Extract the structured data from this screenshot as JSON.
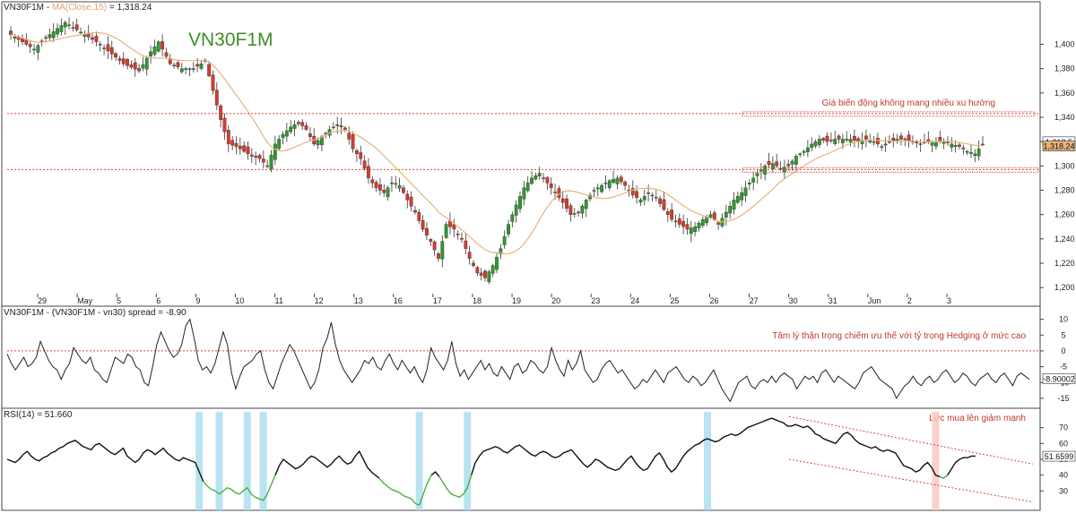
{
  "chart_data": [
    {
      "type": "candlestick",
      "pane": "price",
      "title": "VN30F1M - MA(Close,15) = 1,318.24",
      "title_parts": {
        "symbol": "VN30F1M - ",
        "ma_label": "MA(Close,15)",
        "ma_value": " = 1,318.24"
      },
      "watermark": "VN30F1M",
      "ylim": [
        1195,
        1432
      ],
      "yticks": [
        1200,
        1220,
        1240,
        1260,
        1280,
        1300,
        1320,
        1340,
        1360,
        1380,
        1400
      ],
      "ytick_labels": [
        "1,200",
        "1,220",
        "1,240",
        "1,260",
        "1,280",
        "1,300",
        "1,320",
        "1,340",
        "1,360",
        "1,380",
        "1,400"
      ],
      "x_labels": [
        "29",
        "May",
        "5",
        "6",
        "9",
        "10",
        "11",
        "12",
        "13",
        "16",
        "17",
        "18",
        "19",
        "20",
        "23",
        "24",
        "25",
        "26",
        "27",
        "30",
        "31",
        "Jun",
        "2",
        "3"
      ],
      "close_anchors": [
        [
          0,
          1408
        ],
        [
          6,
          1396
        ],
        [
          10,
          1408
        ],
        [
          14,
          1418
        ],
        [
          17,
          1412
        ],
        [
          22,
          1402
        ],
        [
          26,
          1392
        ],
        [
          29,
          1384
        ],
        [
          33,
          1378
        ],
        [
          36,
          1394
        ],
        [
          38,
          1402
        ],
        [
          41,
          1384
        ],
        [
          44,
          1380
        ],
        [
          47,
          1380
        ],
        [
          50,
          1386
        ],
        [
          52,
          1362
        ],
        [
          54,
          1338
        ],
        [
          56,
          1318
        ],
        [
          58,
          1316
        ],
        [
          60,
          1312
        ],
        [
          62,
          1308
        ],
        [
          64,
          1306
        ],
        [
          66,
          1300
        ],
        [
          68,
          1318
        ],
        [
          70,
          1326
        ],
        [
          72,
          1332
        ],
        [
          74,
          1336
        ],
        [
          76,
          1330
        ],
        [
          78,
          1318
        ],
        [
          80,
          1324
        ],
        [
          82,
          1330
        ],
        [
          84,
          1334
        ],
        [
          86,
          1330
        ],
        [
          88,
          1314
        ],
        [
          90,
          1306
        ],
        [
          92,
          1290
        ],
        [
          94,
          1282
        ],
        [
          96,
          1278
        ],
        [
          98,
          1286
        ],
        [
          100,
          1284
        ],
        [
          102,
          1272
        ],
        [
          104,
          1262
        ],
        [
          106,
          1248
        ],
        [
          108,
          1238
        ],
        [
          110,
          1224
        ],
        [
          112,
          1252
        ],
        [
          114,
          1248
        ],
        [
          116,
          1240
        ],
        [
          118,
          1224
        ],
        [
          120,
          1212
        ],
        [
          122,
          1208
        ],
        [
          124,
          1218
        ],
        [
          126,
          1232
        ],
        [
          128,
          1252
        ],
        [
          130,
          1268
        ],
        [
          132,
          1282
        ],
        [
          134,
          1290
        ],
        [
          136,
          1294
        ],
        [
          138,
          1286
        ],
        [
          140,
          1278
        ],
        [
          142,
          1270
        ],
        [
          144,
          1260
        ],
        [
          146,
          1262
        ],
        [
          148,
          1272
        ],
        [
          150,
          1280
        ],
        [
          152,
          1284
        ],
        [
          154,
          1288
        ],
        [
          156,
          1290
        ],
        [
          158,
          1284
        ],
        [
          160,
          1276
        ],
        [
          162,
          1272
        ],
        [
          164,
          1278
        ],
        [
          166,
          1274
        ],
        [
          168,
          1264
        ],
        [
          170,
          1256
        ],
        [
          172,
          1252
        ],
        [
          174,
          1248
        ],
        [
          176,
          1250
        ],
        [
          178,
          1256
        ],
        [
          180,
          1260
        ],
        [
          182,
          1252
        ],
        [
          184,
          1262
        ],
        [
          186,
          1272
        ],
        [
          188,
          1278
        ],
        [
          190,
          1286
        ],
        [
          192,
          1294
        ],
        [
          194,
          1300
        ],
        [
          196,
          1302
        ],
        [
          198,
          1298
        ],
        [
          200,
          1300
        ],
        [
          202,
          1308
        ],
        [
          204,
          1312
        ],
        [
          206,
          1318
        ],
        [
          208,
          1322
        ],
        [
          210,
          1320
        ],
        [
          212,
          1322
        ],
        [
          214,
          1322
        ],
        [
          216,
          1322
        ],
        [
          218,
          1320
        ],
        [
          220,
          1322
        ],
        [
          222,
          1320
        ],
        [
          224,
          1316
        ],
        [
          226,
          1320
        ],
        [
          228,
          1322
        ],
        [
          230,
          1322
        ],
        [
          232,
          1320
        ],
        [
          234,
          1318
        ],
        [
          236,
          1320
        ],
        [
          238,
          1320
        ],
        [
          240,
          1320
        ],
        [
          242,
          1318
        ],
        [
          244,
          1316
        ],
        [
          246,
          1312
        ],
        [
          248,
          1310
        ],
        [
          250,
          1318
        ]
      ],
      "ma_label": "MA(Close,15)",
      "last_price_badges": [
        "1,318.5",
        "1,318.24"
      ],
      "support_resistance": [
        {
          "label": "resistance",
          "y": 1343
        },
        {
          "label": "support",
          "y": 1297
        }
      ],
      "annotations": [
        "Giá biến động không mang nhiều xu hướng"
      ],
      "xlabel": "",
      "ylabel": ""
    },
    {
      "type": "line",
      "pane": "spread",
      "title": "VN30F1M - (VN30F1M - vn30) spread = -8.90",
      "ylim": [
        -17,
        13
      ],
      "yticks": [
        10,
        5,
        0,
        -5,
        -10,
        -15
      ],
      "ytick_labels": [
        "10",
        "5",
        "0",
        "-5",
        "-10",
        "-15"
      ],
      "reference_line": 0,
      "annotation": "Tâm lý thận trọng chiếm ưu thế với tỷ trọng Hedging ở mức cao",
      "last_value_badge": "-8.90002",
      "values": [
        -1,
        -4,
        -6,
        -4,
        -2,
        -5,
        -4,
        -2,
        3,
        0,
        -3,
        -5,
        -6,
        -9,
        -6,
        -4,
        1,
        -1,
        -3,
        -4,
        -2,
        -6,
        -7,
        -9,
        -10,
        -6,
        -2,
        -3,
        -4,
        -1,
        -2,
        -5,
        -6,
        -10,
        -11,
        -5,
        2,
        6,
        3,
        0,
        -2,
        -1,
        2,
        8,
        10,
        4,
        -3,
        -6,
        -5,
        -7,
        -4,
        1,
        6,
        2,
        -7,
        -12,
        -8,
        -5,
        -4,
        -3,
        -1,
        0,
        -6,
        -10,
        -12,
        -8,
        -4,
        -1,
        2,
        0,
        -3,
        -6,
        -9,
        -12,
        -10,
        -6,
        1,
        4,
        9,
        2,
        -3,
        -6,
        -8,
        -10,
        -8,
        -6,
        -3,
        -4,
        -2,
        -5,
        -6,
        -3,
        -1,
        -4,
        -6,
        -3,
        -5,
        -7,
        -5,
        -8,
        -10,
        -6,
        1,
        -2,
        -4,
        -6,
        -3,
        3,
        -4,
        -8,
        -6,
        -9,
        -7,
        -5,
        -3,
        -6,
        -4,
        -7,
        -8,
        -5,
        -7,
        -9,
        -5,
        -4,
        -7,
        -6,
        -3,
        -4,
        -6,
        -7,
        -5,
        1,
        -3,
        -6,
        -8,
        -3,
        -6,
        -4,
        0,
        -6,
        -8,
        -10,
        -9,
        -6,
        -4,
        -3,
        -5,
        -7,
        -6,
        -8,
        -10,
        -12,
        -11,
        -9,
        -10,
        -8,
        -6,
        -8,
        -10,
        -7,
        -6,
        -5,
        -7,
        -9,
        -10,
        -8,
        -9,
        -11,
        -10,
        -8,
        -6,
        -9,
        -12,
        -14,
        -16,
        -13,
        -10,
        -9,
        -8,
        -11,
        -12,
        -10,
        -9,
        -10,
        -8,
        -10,
        -8,
        -7,
        -8,
        -9,
        -12,
        -10,
        -8,
        -9,
        -8,
        -10,
        -7,
        -6,
        -8,
        -10,
        -8,
        -9,
        -10,
        -11,
        -12,
        -10,
        -7,
        -6,
        -5,
        -7,
        -9,
        -10,
        -11,
        -12,
        -15,
        -13,
        -11,
        -10,
        -8,
        -10,
        -11,
        -9,
        -8,
        -10,
        -9,
        -7,
        -6,
        -8,
        -10,
        -9,
        -7,
        -8,
        -10,
        -11,
        -9,
        -8,
        -7,
        -9,
        -10,
        -8,
        -7,
        -9,
        -11,
        -8,
        -7,
        -8,
        -9
      ]
    },
    {
      "type": "line",
      "pane": "rsi",
      "title": "RSI(14) = 51.660",
      "ylim": [
        20,
        80
      ],
      "yticks": [
        70,
        60,
        50,
        40,
        30
      ],
      "ytick_labels": [
        "70",
        "60",
        "50",
        "40",
        "30"
      ],
      "last_value_badge": "51.6599",
      "annotation": "Lực mua lên giảm mạnh",
      "oversold_highlights_at": [
        48,
        53,
        60,
        64,
        103,
        115,
        175
      ],
      "overbought_highlight_at": [
        232
      ],
      "values": [
        50,
        49,
        48,
        50,
        53,
        55,
        52,
        50,
        49,
        51,
        52,
        54,
        55,
        57,
        58,
        60,
        61,
        62,
        60,
        58,
        57,
        56,
        59,
        60,
        58,
        56,
        54,
        53,
        55,
        57,
        52,
        50,
        48,
        50,
        54,
        56,
        55,
        53,
        55,
        57,
        54,
        52,
        50,
        49,
        51,
        50,
        49,
        48,
        42,
        36,
        33,
        31,
        30,
        28,
        30,
        32,
        31,
        29,
        28,
        30,
        32,
        28,
        26,
        25,
        24,
        28,
        34,
        40,
        46,
        50,
        48,
        46,
        44,
        45,
        47,
        50,
        52,
        51,
        49,
        47,
        45,
        47,
        50,
        52,
        49,
        47,
        48,
        52,
        55,
        50,
        45,
        42,
        40,
        38,
        35,
        33,
        31,
        30,
        29,
        27,
        26,
        25,
        22,
        21,
        28,
        35,
        40,
        42,
        39,
        35,
        31,
        28,
        27,
        26,
        28,
        32,
        40,
        48,
        52,
        55,
        56,
        57,
        58,
        57,
        55,
        54,
        56,
        58,
        59,
        57,
        55,
        53,
        52,
        54,
        55,
        54,
        52,
        51,
        52,
        54,
        55,
        56,
        53,
        50,
        47,
        45,
        47,
        50,
        49,
        47,
        45,
        44,
        43,
        44,
        47,
        50,
        52,
        48,
        45,
        43,
        44,
        48,
        52,
        54,
        50,
        45,
        42,
        44,
        48,
        52,
        55,
        57,
        59,
        60,
        62,
        63,
        62,
        61,
        62,
        64,
        65,
        66,
        65,
        66,
        68,
        70,
        71,
        72,
        73,
        74,
        75,
        76,
        75,
        74,
        73,
        71,
        71,
        72,
        71,
        70,
        71,
        69,
        66,
        65,
        63,
        62,
        61,
        60,
        63,
        66,
        67,
        65,
        62,
        60,
        59,
        58,
        57,
        58,
        56,
        55,
        56,
        55,
        54,
        50,
        46,
        45,
        44,
        42,
        43,
        46,
        48,
        45,
        40,
        39,
        38,
        40,
        44,
        48,
        50,
        51,
        51,
        52,
        52
      ]
    }
  ]
}
